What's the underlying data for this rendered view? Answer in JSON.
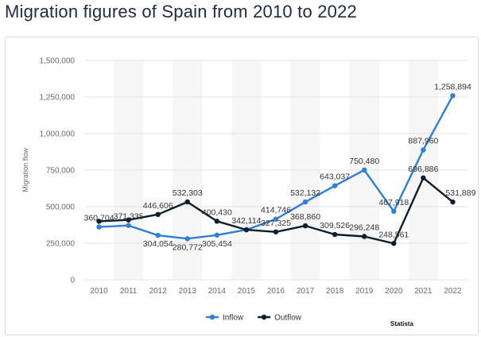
{
  "page": {
    "title": "Migration figures of Spain from 2010 to 2022"
  },
  "chart_data": {
    "type": "line",
    "title": "Migration figures of Spain from 2010 to 2022",
    "xlabel": "",
    "ylabel": "Migration flow",
    "x": [
      "2010",
      "2011",
      "2012",
      "2013",
      "2014",
      "2015",
      "2016",
      "2017",
      "2018",
      "2019",
      "2020",
      "2021",
      "2022"
    ],
    "ylim": [
      0,
      1500000
    ],
    "yticks": [
      0,
      250000,
      500000,
      750000,
      1000000,
      1250000,
      1500000
    ],
    "ytick_labels": [
      "0",
      "250,000",
      "500,000",
      "750,000",
      "1,000,000",
      "1,250,000",
      "1,500,000"
    ],
    "grid": true,
    "legend_position": "bottom",
    "series": [
      {
        "name": "Inflow",
        "color": "#2f7ed8",
        "values": [
          360704,
          371335,
          304054,
          280772,
          305454,
          342114,
          414746,
          532132,
          643037,
          750480,
          467918,
          887960,
          1258894
        ],
        "labels": [
          "360,704",
          "371,335",
          "304,054",
          "280,772",
          "305,454",
          "342,114",
          "414,746",
          "532,132",
          "643,037",
          "750,480",
          "467,918",
          "887,960",
          "1,258,894"
        ]
      },
      {
        "name": "Outflow",
        "color": "#0d1f2d",
        "values": [
          400000,
          409000,
          446606,
          532303,
          400430,
          342114,
          327325,
          368860,
          309526,
          296248,
          248561,
          696886,
          531889
        ],
        "labels": [
          "",
          "",
          "446,606",
          "532,303",
          "400,430",
          "",
          "327,325",
          "368,860",
          "309,526",
          "296,248",
          "248,561",
          "696,886",
          "531,889"
        ]
      }
    ],
    "source": "Statista"
  }
}
